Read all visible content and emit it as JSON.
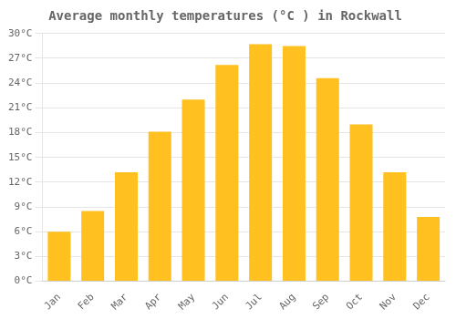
{
  "chart_data": {
    "type": "bar",
    "title": "Average monthly temperatures (°C ) in Rockwall",
    "categories": [
      "Jan",
      "Feb",
      "Mar",
      "Apr",
      "May",
      "Jun",
      "Jul",
      "Aug",
      "Sep",
      "Oct",
      "Nov",
      "Dec"
    ],
    "values": [
      6,
      8.5,
      13.2,
      18.1,
      22,
      26.2,
      28.7,
      28.5,
      24.6,
      19,
      13.2,
      7.8
    ],
    "color": "#FFC020",
    "ylim": [
      0,
      30
    ],
    "yticks": [
      {
        "value": 0,
        "label": "0°C"
      },
      {
        "value": 3,
        "label": "3°C"
      },
      {
        "value": 6,
        "label": "6°C"
      },
      {
        "value": 9,
        "label": "9°C"
      },
      {
        "value": 12,
        "label": "12°C"
      },
      {
        "value": 15,
        "label": "15°C"
      },
      {
        "value": 18,
        "label": "18°C"
      },
      {
        "value": 21,
        "label": "21°C"
      },
      {
        "value": 24,
        "label": "24°C"
      },
      {
        "value": 27,
        "label": "27°C"
      },
      {
        "value": 30,
        "label": "30°C"
      }
    ],
    "grid": true
  }
}
